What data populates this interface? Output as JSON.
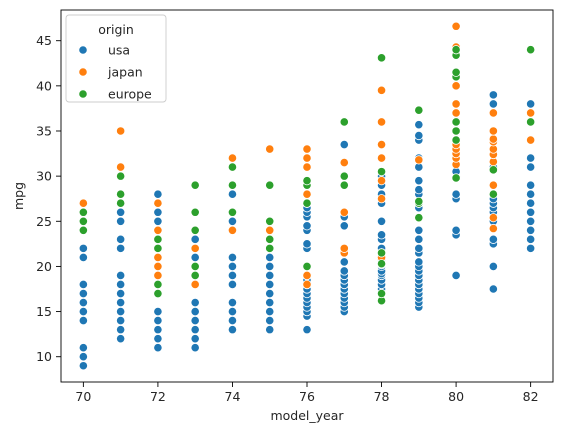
{
  "chart_data": {
    "type": "scatter",
    "title": "",
    "xlabel": "model_year",
    "ylabel": "mpg",
    "xlim": [
      69.4,
      82.6
    ],
    "ylim": [
      7.2,
      48.4
    ],
    "xticks": [
      70,
      72,
      74,
      76,
      78,
      80,
      82
    ],
    "yticks": [
      10,
      15,
      20,
      25,
      30,
      35,
      40,
      45
    ],
    "grid": false,
    "legend": {
      "title": "origin",
      "placement": "top-left"
    },
    "series": [
      {
        "name": "usa",
        "color": "#1f77b4",
        "points": [
          [
            70,
            9
          ],
          [
            70,
            10
          ],
          [
            70,
            11
          ],
          [
            70,
            14
          ],
          [
            70,
            15
          ],
          [
            70,
            16
          ],
          [
            70,
            17
          ],
          [
            70,
            18
          ],
          [
            70,
            21
          ],
          [
            70,
            22
          ],
          [
            71,
            12
          ],
          [
            71,
            13
          ],
          [
            71,
            14
          ],
          [
            71,
            15
          ],
          [
            71,
            16
          ],
          [
            71,
            17
          ],
          [
            71,
            18
          ],
          [
            71,
            19
          ],
          [
            71,
            22
          ],
          [
            71,
            23
          ],
          [
            71,
            25
          ],
          [
            71,
            26
          ],
          [
            72,
            11
          ],
          [
            72,
            12
          ],
          [
            72,
            13
          ],
          [
            72,
            14
          ],
          [
            72,
            15
          ],
          [
            72,
            17
          ],
          [
            72,
            18
          ],
          [
            72,
            19
          ],
          [
            72,
            20
          ],
          [
            72,
            21
          ],
          [
            72,
            22
          ],
          [
            72,
            23
          ],
          [
            72,
            24
          ],
          [
            72,
            25
          ],
          [
            72,
            26
          ],
          [
            72,
            27
          ],
          [
            72,
            28
          ],
          [
            73,
            11
          ],
          [
            73,
            12
          ],
          [
            73,
            13
          ],
          [
            73,
            14
          ],
          [
            73,
            15
          ],
          [
            73,
            16
          ],
          [
            73,
            18
          ],
          [
            73,
            19
          ],
          [
            73,
            20
          ],
          [
            73,
            21
          ],
          [
            73,
            22
          ],
          [
            73,
            23
          ],
          [
            74,
            13
          ],
          [
            74,
            14
          ],
          [
            74,
            15
          ],
          [
            74,
            16
          ],
          [
            74,
            18
          ],
          [
            74,
            19
          ],
          [
            74,
            20
          ],
          [
            74,
            21
          ],
          [
            74,
            24
          ],
          [
            74,
            25
          ],
          [
            74,
            26
          ],
          [
            74,
            28
          ],
          [
            75,
            13
          ],
          [
            75,
            14
          ],
          [
            75,
            15
          ],
          [
            75,
            16
          ],
          [
            75,
            17
          ],
          [
            75,
            18
          ],
          [
            75,
            19
          ],
          [
            75,
            20
          ],
          [
            75,
            21
          ],
          [
            75,
            22
          ],
          [
            75,
            23
          ],
          [
            76,
            13
          ],
          [
            76,
            14.5
          ],
          [
            76,
            15
          ],
          [
            76,
            15.5
          ],
          [
            76,
            16
          ],
          [
            76,
            16.5
          ],
          [
            76,
            17
          ],
          [
            76,
            17.5
          ],
          [
            76,
            18
          ],
          [
            76,
            18.5
          ],
          [
            76,
            19
          ],
          [
            76,
            20
          ],
          [
            76,
            22
          ],
          [
            76,
            22.5
          ],
          [
            76,
            24
          ],
          [
            76,
            24.5
          ],
          [
            76,
            25.5
          ],
          [
            76,
            26
          ],
          [
            76,
            26.5
          ],
          [
            76,
            27
          ],
          [
            77,
            15
          ],
          [
            77,
            15.5
          ],
          [
            77,
            16
          ],
          [
            77,
            16.5
          ],
          [
            77,
            17
          ],
          [
            77,
            17.5
          ],
          [
            77,
            18
          ],
          [
            77,
            18.5
          ],
          [
            77,
            19
          ],
          [
            77,
            19.5
          ],
          [
            77,
            20.5
          ],
          [
            77,
            21.5
          ],
          [
            77,
            22
          ],
          [
            77,
            24.5
          ],
          [
            77,
            25.5
          ],
          [
            77,
            30
          ],
          [
            77,
            33.5
          ],
          [
            78,
            17.5
          ],
          [
            78,
            18
          ],
          [
            78,
            18.5
          ],
          [
            78,
            19
          ],
          [
            78,
            19.2
          ],
          [
            78,
            19.5
          ],
          [
            78,
            20
          ],
          [
            78,
            20.2
          ],
          [
            78,
            20.5
          ],
          [
            78,
            20.8
          ],
          [
            78,
            21.5
          ],
          [
            78,
            22
          ],
          [
            78,
            23
          ],
          [
            78,
            23.5
          ],
          [
            78,
            25
          ],
          [
            78,
            27
          ],
          [
            78,
            28
          ],
          [
            78,
            29
          ],
          [
            78,
            30
          ],
          [
            78,
            32
          ],
          [
            79,
            15.5
          ],
          [
            79,
            16
          ],
          [
            79,
            16.5
          ],
          [
            79,
            17
          ],
          [
            79,
            17.5
          ],
          [
            79,
            18
          ],
          [
            79,
            18.5
          ],
          [
            79,
            19
          ],
          [
            79,
            19.5
          ],
          [
            79,
            20
          ],
          [
            79,
            20.5
          ],
          [
            79,
            21.5
          ],
          [
            79,
            22
          ],
          [
            79,
            23
          ],
          [
            79,
            24
          ],
          [
            79,
            26.5
          ],
          [
            79,
            27
          ],
          [
            79,
            28
          ],
          [
            79,
            28.5
          ],
          [
            79,
            29.5
          ],
          [
            79,
            31
          ],
          [
            79,
            32
          ],
          [
            79,
            34
          ],
          [
            79,
            34.5
          ],
          [
            79,
            35.7
          ],
          [
            80,
            19
          ],
          [
            80,
            23.5
          ],
          [
            80,
            24
          ],
          [
            80,
            27.5
          ],
          [
            80,
            28
          ],
          [
            80,
            30.5
          ],
          [
            80,
            32
          ],
          [
            81,
            17.5
          ],
          [
            81,
            20
          ],
          [
            81,
            22.5
          ],
          [
            81,
            23
          ],
          [
            81,
            25
          ],
          [
            81,
            25.5
          ],
          [
            81,
            26
          ],
          [
            81,
            26.5
          ],
          [
            81,
            27
          ],
          [
            81,
            27.5
          ],
          [
            81,
            31
          ],
          [
            81,
            34
          ],
          [
            81,
            38
          ],
          [
            81,
            39
          ],
          [
            82,
            22
          ],
          [
            82,
            23
          ],
          [
            82,
            24
          ],
          [
            82,
            25
          ],
          [
            82,
            26
          ],
          [
            82,
            27
          ],
          [
            82,
            28
          ],
          [
            82,
            29
          ],
          [
            82,
            31
          ],
          [
            82,
            32
          ],
          [
            82,
            34
          ],
          [
            82,
            36
          ],
          [
            82,
            38
          ]
        ]
      },
      {
        "name": "japan",
        "color": "#ff7f0e",
        "points": [
          [
            70,
            24
          ],
          [
            70,
            25
          ],
          [
            70,
            27
          ],
          [
            71,
            31
          ],
          [
            71,
            35
          ],
          [
            72,
            18
          ],
          [
            72,
            19
          ],
          [
            72,
            20
          ],
          [
            72,
            21
          ],
          [
            72,
            22
          ],
          [
            72,
            24
          ],
          [
            72,
            27
          ],
          [
            73,
            18
          ],
          [
            73,
            19
          ],
          [
            73,
            20
          ],
          [
            73,
            22
          ],
          [
            74,
            24
          ],
          [
            74,
            26
          ],
          [
            74,
            31
          ],
          [
            74,
            32
          ],
          [
            75,
            23
          ],
          [
            75,
            24
          ],
          [
            75,
            33
          ],
          [
            76,
            18
          ],
          [
            76,
            19
          ],
          [
            76,
            28
          ],
          [
            76,
            31
          ],
          [
            76,
            32
          ],
          [
            76,
            33
          ],
          [
            77,
            21.5
          ],
          [
            77,
            22
          ],
          [
            77,
            26
          ],
          [
            77,
            30
          ],
          [
            77,
            31.5
          ],
          [
            78,
            21
          ],
          [
            78,
            21.5
          ],
          [
            78,
            27.5
          ],
          [
            78,
            29.5
          ],
          [
            78,
            32
          ],
          [
            78,
            33.5
          ],
          [
            78,
            36
          ],
          [
            78,
            39.5
          ],
          [
            79,
            31.8
          ],
          [
            80,
            29.8
          ],
          [
            80,
            31.3
          ],
          [
            80,
            32
          ],
          [
            80,
            32.5
          ],
          [
            80,
            33
          ],
          [
            80,
            33.5
          ],
          [
            80,
            34
          ],
          [
            80,
            35
          ],
          [
            80,
            36
          ],
          [
            80,
            37
          ],
          [
            80,
            38
          ],
          [
            80,
            40
          ],
          [
            80,
            44.3
          ],
          [
            80,
            46.6
          ],
          [
            81,
            24.2
          ],
          [
            81,
            25.4
          ],
          [
            81,
            29
          ],
          [
            81,
            31.6
          ],
          [
            81,
            32.4
          ],
          [
            81,
            33
          ],
          [
            81,
            33.8
          ],
          [
            81,
            34.1
          ],
          [
            81,
            35
          ],
          [
            81,
            37
          ],
          [
            82,
            34
          ],
          [
            82,
            37
          ]
        ]
      },
      {
        "name": "europe",
        "color": "#2ca02c",
        "points": [
          [
            70,
            24
          ],
          [
            70,
            25
          ],
          [
            70,
            26
          ],
          [
            71,
            27
          ],
          [
            71,
            28
          ],
          [
            71,
            30
          ],
          [
            72,
            17
          ],
          [
            72,
            18
          ],
          [
            72,
            22
          ],
          [
            72,
            23
          ],
          [
            73,
            19
          ],
          [
            73,
            20
          ],
          [
            73,
            24
          ],
          [
            73,
            26
          ],
          [
            73,
            29
          ],
          [
            74,
            26
          ],
          [
            74,
            29
          ],
          [
            74,
            31
          ],
          [
            75,
            22
          ],
          [
            75,
            23
          ],
          [
            75,
            25
          ],
          [
            75,
            29
          ],
          [
            76,
            20
          ],
          [
            76,
            27
          ],
          [
            76,
            29
          ],
          [
            76,
            29.5
          ],
          [
            77,
            29
          ],
          [
            77,
            30
          ],
          [
            77,
            36
          ],
          [
            78,
            16.2
          ],
          [
            78,
            17
          ],
          [
            78,
            20.3
          ],
          [
            78,
            21.5
          ],
          [
            78,
            30.5
          ],
          [
            78,
            43.1
          ],
          [
            79,
            25.4
          ],
          [
            79,
            27
          ],
          [
            79,
            27.2
          ],
          [
            79,
            37.3
          ],
          [
            80,
            29.8
          ],
          [
            80,
            34
          ],
          [
            80,
            35
          ],
          [
            80,
            36
          ],
          [
            80,
            41
          ],
          [
            80,
            41.5
          ],
          [
            80,
            43.4
          ],
          [
            80,
            44
          ],
          [
            81,
            28
          ],
          [
            81,
            30.7
          ],
          [
            82,
            36
          ],
          [
            82,
            44
          ]
        ]
      }
    ]
  }
}
